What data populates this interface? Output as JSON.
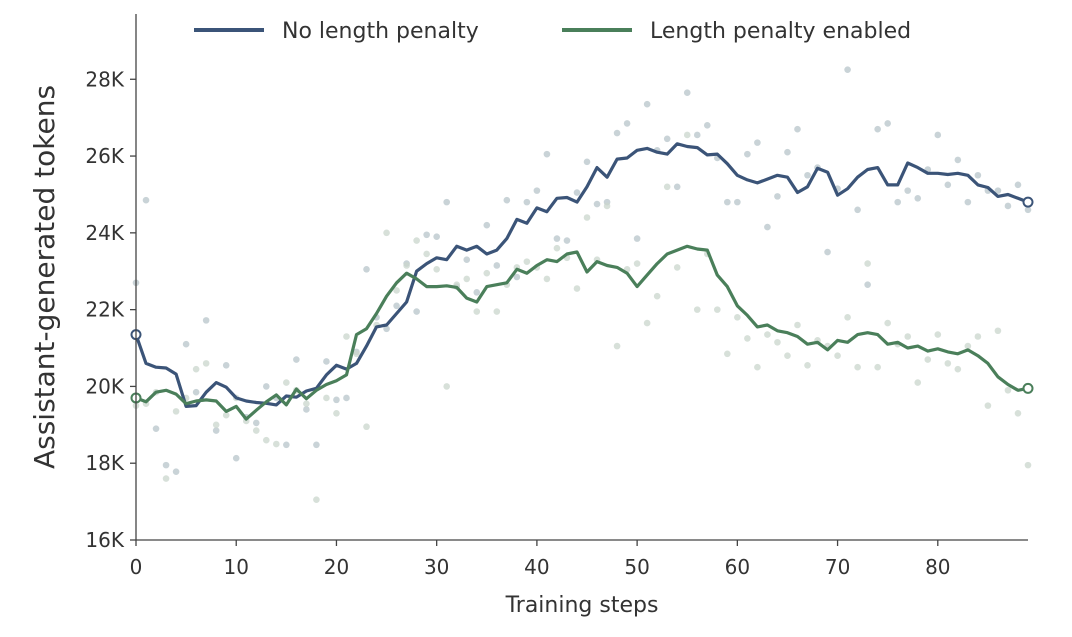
{
  "chart_data": {
    "type": "line",
    "xlabel": "Training steps",
    "ylabel": "Assistant-generated tokens",
    "xlim": [
      0,
      89
    ],
    "ylim": [
      16000,
      29700
    ],
    "x_ticks": [
      0,
      10,
      20,
      30,
      40,
      50,
      60,
      70,
      80
    ],
    "x_tick_labels": [
      "0",
      "10",
      "20",
      "30",
      "40",
      "50",
      "60",
      "70",
      "80"
    ],
    "y_ticks": [
      16000,
      18000,
      20000,
      22000,
      24000,
      26000,
      28000
    ],
    "y_tick_labels": [
      "16K",
      "18K",
      "20K",
      "22K",
      "24K",
      "26K",
      "28K"
    ],
    "grid": false,
    "legend_position": "top",
    "series": [
      {
        "name": "No length penalty",
        "color": "#3b5478",
        "x": [
          0,
          1,
          2,
          3,
          4,
          5,
          6,
          7,
          8,
          9,
          10,
          11,
          12,
          13,
          14,
          15,
          16,
          17,
          18,
          19,
          20,
          21,
          22,
          23,
          24,
          25,
          26,
          27,
          28,
          29,
          30,
          31,
          32,
          33,
          34,
          35,
          36,
          37,
          38,
          39,
          40,
          41,
          42,
          43,
          44,
          45,
          46,
          47,
          48,
          49,
          50,
          51,
          52,
          53,
          54,
          55,
          56,
          57,
          58,
          59,
          60,
          61,
          62,
          63,
          64,
          65,
          66,
          67,
          68,
          69,
          70,
          71,
          72,
          73,
          74,
          75,
          76,
          77,
          78,
          79,
          80,
          81,
          82,
          83,
          84,
          85,
          86,
          87,
          88,
          89
        ],
        "y": [
          21350,
          20600,
          20500,
          20480,
          20320,
          19480,
          19500,
          19850,
          20100,
          19980,
          19700,
          19620,
          19580,
          19560,
          19520,
          19750,
          19720,
          19880,
          19950,
          20300,
          20550,
          20450,
          20600,
          21050,
          21550,
          21600,
          21900,
          22200,
          23000,
          23200,
          23350,
          23300,
          23650,
          23550,
          23650,
          23450,
          23550,
          23850,
          24350,
          24250,
          24650,
          24550,
          24900,
          24920,
          24800,
          25200,
          25700,
          25450,
          25920,
          25950,
          26150,
          26200,
          26100,
          26050,
          26320,
          26250,
          26220,
          26030,
          26050,
          25800,
          25500,
          25380,
          25300,
          25400,
          25500,
          25450,
          25050,
          25200,
          25680,
          25580,
          24980,
          25150,
          25450,
          25650,
          25700,
          25250,
          25250,
          25820,
          25700,
          25550,
          25550,
          25520,
          25550,
          25500,
          25250,
          25180,
          24950,
          25000,
          24900,
          24800
        ]
      },
      {
        "name": "Length penalty enabled",
        "color": "#4a7f5a",
        "x": [
          0,
          1,
          2,
          3,
          4,
          5,
          6,
          7,
          8,
          9,
          10,
          11,
          12,
          13,
          14,
          15,
          16,
          17,
          18,
          19,
          20,
          21,
          22,
          23,
          24,
          25,
          26,
          27,
          28,
          29,
          30,
          31,
          32,
          33,
          34,
          35,
          36,
          37,
          38,
          39,
          40,
          41,
          42,
          43,
          44,
          45,
          46,
          47,
          48,
          49,
          50,
          51,
          52,
          53,
          54,
          55,
          56,
          57,
          58,
          59,
          60,
          61,
          62,
          63,
          64,
          65,
          66,
          67,
          68,
          69,
          70,
          71,
          72,
          73,
          74,
          75,
          76,
          77,
          78,
          79,
          80,
          81,
          82,
          83,
          84,
          85,
          86,
          87,
          88,
          89
        ],
        "y": [
          19700,
          19600,
          19850,
          19900,
          19800,
          19550,
          19620,
          19650,
          19620,
          19350,
          19480,
          19150,
          19380,
          19600,
          19780,
          19520,
          19930,
          19680,
          19900,
          20050,
          20150,
          20300,
          21350,
          21500,
          21900,
          22350,
          22700,
          22950,
          22800,
          22600,
          22600,
          22620,
          22580,
          22300,
          22200,
          22600,
          22650,
          22700,
          23050,
          22950,
          23150,
          23300,
          23250,
          23450,
          23500,
          22980,
          23250,
          23150,
          23100,
          22950,
          22600,
          22900,
          23200,
          23450,
          23550,
          23650,
          23580,
          23550,
          22900,
          22600,
          22100,
          21850,
          21550,
          21600,
          21450,
          21400,
          21300,
          21100,
          21150,
          20950,
          21200,
          21150,
          21350,
          21400,
          21350,
          21100,
          21150,
          21000,
          21050,
          20920,
          20980,
          20900,
          20850,
          20950,
          20800,
          20600,
          20250,
          20050,
          19900,
          19950
        ]
      }
    ],
    "scatter_series": [
      {
        "color": "#b7c4c9",
        "x": [
          0,
          1,
          2,
          3,
          4,
          5,
          6,
          7,
          8,
          9,
          10,
          11,
          12,
          13,
          14,
          15,
          16,
          17,
          18,
          19,
          20,
          21,
          22,
          23,
          24,
          25,
          26,
          27,
          28,
          29,
          30,
          31,
          32,
          33,
          34,
          35,
          36,
          37,
          38,
          39,
          40,
          41,
          42,
          43,
          44,
          45,
          46,
          47,
          48,
          49,
          50,
          51,
          52,
          53,
          54,
          55,
          56,
          57,
          58,
          59,
          60,
          61,
          62,
          63,
          64,
          65,
          66,
          67,
          68,
          69,
          70,
          71,
          72,
          73,
          74,
          75,
          76,
          77,
          78,
          79,
          80,
          81,
          82,
          83,
          84,
          85,
          86,
          87,
          88,
          89
        ],
        "y": [
          22700,
          24850,
          18900,
          17950,
          17780,
          21100,
          19850,
          21720,
          18850,
          20550,
          18130,
          19200,
          19050,
          20000,
          19700,
          18480,
          20700,
          19400,
          18480,
          20650,
          19650,
          19700,
          20900,
          23050,
          21800,
          21500,
          22100,
          23200,
          21950,
          23950,
          23900,
          24800,
          22600,
          23300,
          22450,
          24200,
          23150,
          24850,
          22850,
          24800,
          25100,
          26050,
          23850,
          23800,
          25050,
          25850,
          24750,
          24800,
          26600,
          26850,
          23850,
          27350,
          26150,
          26450,
          25200,
          27650,
          26550,
          26800,
          25950,
          24800,
          24800,
          26050,
          26350,
          24150,
          24950,
          26100,
          26700,
          25500,
          25700,
          23500,
          25150,
          28250,
          24600,
          22650,
          26700,
          26850,
          24800,
          25100,
          24900,
          25650,
          26550,
          25250,
          25900,
          24800,
          25500,
          25100,
          25100,
          24700,
          25250,
          24600
        ]
      },
      {
        "color": "#c9d6cc",
        "x": [
          0,
          1,
          2,
          3,
          4,
          5,
          6,
          7,
          8,
          9,
          10,
          11,
          12,
          13,
          14,
          15,
          16,
          17,
          18,
          19,
          20,
          21,
          22,
          23,
          24,
          25,
          26,
          27,
          28,
          29,
          30,
          31,
          32,
          33,
          34,
          35,
          36,
          37,
          38,
          39,
          40,
          41,
          42,
          43,
          44,
          45,
          46,
          47,
          48,
          49,
          50,
          51,
          52,
          53,
          54,
          55,
          56,
          57,
          58,
          59,
          60,
          61,
          62,
          63,
          64,
          65,
          66,
          67,
          68,
          69,
          70,
          71,
          72,
          73,
          74,
          75,
          76,
          77,
          78,
          79,
          80,
          81,
          82,
          83,
          84,
          85,
          86,
          87,
          88,
          89
        ],
        "y": [
          19500,
          19550,
          19850,
          17600,
          19350,
          19700,
          20450,
          20600,
          19000,
          19250,
          19700,
          19100,
          18850,
          18600,
          18500,
          20100,
          19900,
          19550,
          17050,
          19700,
          19300,
          21300,
          20850,
          18950,
          21600,
          24000,
          22500,
          23150,
          23800,
          23450,
          23050,
          20000,
          22650,
          22800,
          21950,
          22950,
          21950,
          22650,
          23100,
          23250,
          23100,
          22800,
          23600,
          23350,
          22550,
          24400,
          23300,
          24700,
          21050,
          23050,
          23200,
          21650,
          22350,
          25200,
          23100,
          26550,
          22000,
          23450,
          22000,
          20850,
          21800,
          21250,
          20500,
          21350,
          21150,
          20800,
          21600,
          20550,
          21200,
          21050,
          20800,
          21800,
          20500,
          23200,
          20500,
          21650,
          21100,
          21300,
          20100,
          20700,
          21350,
          20600,
          20450,
          21050,
          21300,
          19500,
          21450,
          19900,
          19300,
          17950
        ]
      }
    ]
  }
}
